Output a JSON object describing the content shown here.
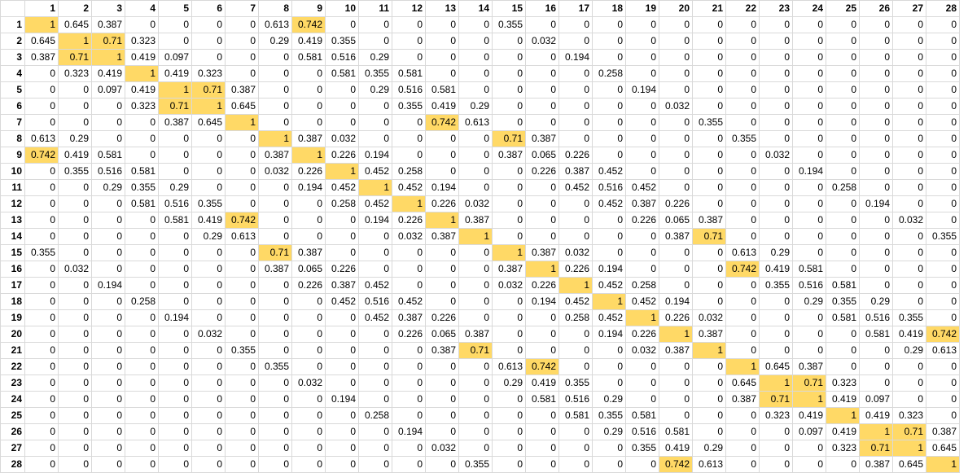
{
  "highlight_color": "#ffd966",
  "col_headers": [
    "1",
    "2",
    "3",
    "4",
    "5",
    "6",
    "7",
    "8",
    "9",
    "10",
    "11",
    "12",
    "13",
    "14",
    "15",
    "16",
    "17",
    "18",
    "19",
    "20",
    "21",
    "22",
    "23",
    "24",
    "25",
    "26",
    "27",
    "28"
  ],
  "row_headers": [
    "1",
    "2",
    "3",
    "4",
    "5",
    "6",
    "7",
    "8",
    "9",
    "10",
    "11",
    "12",
    "13",
    "14",
    "15",
    "16",
    "17",
    "18",
    "19",
    "20",
    "21",
    "22",
    "23",
    "24",
    "25",
    "26",
    "27",
    "28"
  ],
  "rows": [
    [
      "1",
      "0.645",
      "0.387",
      "0",
      "0",
      "0",
      "0",
      "0.613",
      "0.742",
      "0",
      "0",
      "0",
      "0",
      "0",
      "0.355",
      "0",
      "0",
      "0",
      "0",
      "0",
      "0",
      "0",
      "0",
      "0",
      "0",
      "0",
      "0",
      "0"
    ],
    [
      "0.645",
      "1",
      "0.71",
      "0.323",
      "0",
      "0",
      "0",
      "0.29",
      "0.419",
      "0.355",
      "0",
      "0",
      "0",
      "0",
      "0",
      "0.032",
      "0",
      "0",
      "0",
      "0",
      "0",
      "0",
      "0",
      "0",
      "0",
      "0",
      "0",
      "0"
    ],
    [
      "0.387",
      "0.71",
      "1",
      "0.419",
      "0.097",
      "0",
      "0",
      "0",
      "0.581",
      "0.516",
      "0.29",
      "0",
      "0",
      "0",
      "0",
      "0",
      "0.194",
      "0",
      "0",
      "0",
      "0",
      "0",
      "0",
      "0",
      "0",
      "0",
      "0",
      "0"
    ],
    [
      "0",
      "0.323",
      "0.419",
      "1",
      "0.419",
      "0.323",
      "0",
      "0",
      "0",
      "0.581",
      "0.355",
      "0.581",
      "0",
      "0",
      "0",
      "0",
      "0",
      "0.258",
      "0",
      "0",
      "0",
      "0",
      "0",
      "0",
      "0",
      "0",
      "0",
      "0"
    ],
    [
      "0",
      "0",
      "0.097",
      "0.419",
      "1",
      "0.71",
      "0.387",
      "0",
      "0",
      "0",
      "0.29",
      "0.516",
      "0.581",
      "0",
      "0",
      "0",
      "0",
      "0",
      "0.194",
      "0",
      "0",
      "0",
      "0",
      "0",
      "0",
      "0",
      "0",
      "0"
    ],
    [
      "0",
      "0",
      "0",
      "0.323",
      "0.71",
      "1",
      "0.645",
      "0",
      "0",
      "0",
      "0",
      "0.355",
      "0.419",
      "0.29",
      "0",
      "0",
      "0",
      "0",
      "0",
      "0.032",
      "0",
      "0",
      "0",
      "0",
      "0",
      "0",
      "0",
      "0"
    ],
    [
      "0",
      "0",
      "0",
      "0",
      "0.387",
      "0.645",
      "1",
      "0",
      "0",
      "0",
      "0",
      "0",
      "0.742",
      "0.613",
      "0",
      "0",
      "0",
      "0",
      "0",
      "0",
      "0.355",
      "0",
      "0",
      "0",
      "0",
      "0",
      "0",
      "0"
    ],
    [
      "0.613",
      "0.29",
      "0",
      "0",
      "0",
      "0",
      "0",
      "1",
      "0.387",
      "0.032",
      "0",
      "0",
      "0",
      "0",
      "0.71",
      "0.387",
      "0",
      "0",
      "0",
      "0",
      "0",
      "0.355",
      "0",
      "0",
      "0",
      "0",
      "0",
      "0"
    ],
    [
      "0.742",
      "0.419",
      "0.581",
      "0",
      "0",
      "0",
      "0",
      "0.387",
      "1",
      "0.226",
      "0.194",
      "0",
      "0",
      "0",
      "0.387",
      "0.065",
      "0.226",
      "0",
      "0",
      "0",
      "0",
      "0",
      "0.032",
      "0",
      "0",
      "0",
      "0",
      "0"
    ],
    [
      "0",
      "0.355",
      "0.516",
      "0.581",
      "0",
      "0",
      "0",
      "0.032",
      "0.226",
      "1",
      "0.452",
      "0.258",
      "0",
      "0",
      "0",
      "0.226",
      "0.387",
      "0.452",
      "0",
      "0",
      "0",
      "0",
      "0",
      "0.194",
      "0",
      "0",
      "0",
      "0"
    ],
    [
      "0",
      "0",
      "0.29",
      "0.355",
      "0.29",
      "0",
      "0",
      "0",
      "0.194",
      "0.452",
      "1",
      "0.452",
      "0.194",
      "0",
      "0",
      "0",
      "0.452",
      "0.516",
      "0.452",
      "0",
      "0",
      "0",
      "0",
      "0",
      "0.258",
      "0",
      "0",
      "0"
    ],
    [
      "0",
      "0",
      "0",
      "0.581",
      "0.516",
      "0.355",
      "0",
      "0",
      "0",
      "0.258",
      "0.452",
      "1",
      "0.226",
      "0.032",
      "0",
      "0",
      "0",
      "0.452",
      "0.387",
      "0.226",
      "0",
      "0",
      "0",
      "0",
      "0",
      "0.194",
      "0",
      "0"
    ],
    [
      "0",
      "0",
      "0",
      "0",
      "0.581",
      "0.419",
      "0.742",
      "0",
      "0",
      "0",
      "0.194",
      "0.226",
      "1",
      "0.387",
      "0",
      "0",
      "0",
      "0",
      "0.226",
      "0.065",
      "0.387",
      "0",
      "0",
      "0",
      "0",
      "0",
      "0.032",
      "0"
    ],
    [
      "0",
      "0",
      "0",
      "0",
      "0",
      "0.29",
      "0.613",
      "0",
      "0",
      "0",
      "0",
      "0.032",
      "0.387",
      "1",
      "0",
      "0",
      "0",
      "0",
      "0",
      "0.387",
      "0.71",
      "0",
      "0",
      "0",
      "0",
      "0",
      "0",
      "0.355"
    ],
    [
      "0.355",
      "0",
      "0",
      "0",
      "0",
      "0",
      "0",
      "0.71",
      "0.387",
      "0",
      "0",
      "0",
      "0",
      "0",
      "1",
      "0.387",
      "0.032",
      "0",
      "0",
      "0",
      "0",
      "0.613",
      "0.29",
      "0",
      "0",
      "0",
      "0",
      "0"
    ],
    [
      "0",
      "0.032",
      "0",
      "0",
      "0",
      "0",
      "0",
      "0.387",
      "0.065",
      "0.226",
      "0",
      "0",
      "0",
      "0",
      "0.387",
      "1",
      "0.226",
      "0.194",
      "0",
      "0",
      "0",
      "0.742",
      "0.419",
      "0.581",
      "0",
      "0",
      "0",
      "0"
    ],
    [
      "0",
      "0",
      "0.194",
      "0",
      "0",
      "0",
      "0",
      "0",
      "0.226",
      "0.387",
      "0.452",
      "0",
      "0",
      "0",
      "0.032",
      "0.226",
      "1",
      "0.452",
      "0.258",
      "0",
      "0",
      "0",
      "0.355",
      "0.516",
      "0.581",
      "0",
      "0",
      "0"
    ],
    [
      "0",
      "0",
      "0",
      "0.258",
      "0",
      "0",
      "0",
      "0",
      "0",
      "0.452",
      "0.516",
      "0.452",
      "0",
      "0",
      "0",
      "0.194",
      "0.452",
      "1",
      "0.452",
      "0.194",
      "0",
      "0",
      "0",
      "0.29",
      "0.355",
      "0.29",
      "0",
      "0"
    ],
    [
      "0",
      "0",
      "0",
      "0",
      "0.194",
      "0",
      "0",
      "0",
      "0",
      "0",
      "0.452",
      "0.387",
      "0.226",
      "0",
      "0",
      "0",
      "0.258",
      "0.452",
      "1",
      "0.226",
      "0.032",
      "0",
      "0",
      "0",
      "0.581",
      "0.516",
      "0.355",
      "0"
    ],
    [
      "0",
      "0",
      "0",
      "0",
      "0",
      "0.032",
      "0",
      "0",
      "0",
      "0",
      "0",
      "0.226",
      "0.065",
      "0.387",
      "0",
      "0",
      "0",
      "0.194",
      "0.226",
      "1",
      "0.387",
      "0",
      "0",
      "0",
      "0",
      "0.581",
      "0.419",
      "0.742"
    ],
    [
      "0",
      "0",
      "0",
      "0",
      "0",
      "0",
      "0.355",
      "0",
      "0",
      "0",
      "0",
      "0",
      "0.387",
      "0.71",
      "0",
      "0",
      "0",
      "0",
      "0.032",
      "0.387",
      "1",
      "0",
      "0",
      "0",
      "0",
      "0",
      "0.29",
      "0.613"
    ],
    [
      "0",
      "0",
      "0",
      "0",
      "0",
      "0",
      "0",
      "0.355",
      "0",
      "0",
      "0",
      "0",
      "0",
      "0",
      "0.613",
      "0.742",
      "0",
      "0",
      "0",
      "0",
      "0",
      "1",
      "0.645",
      "0.387",
      "0",
      "0",
      "0",
      "0"
    ],
    [
      "0",
      "0",
      "0",
      "0",
      "0",
      "0",
      "0",
      "0",
      "0.032",
      "0",
      "0",
      "0",
      "0",
      "0",
      "0.29",
      "0.419",
      "0.355",
      "0",
      "0",
      "0",
      "0",
      "0.645",
      "1",
      "0.71",
      "0.323",
      "0",
      "0",
      "0"
    ],
    [
      "0",
      "0",
      "0",
      "0",
      "0",
      "0",
      "0",
      "0",
      "0",
      "0.194",
      "0",
      "0",
      "0",
      "0",
      "0",
      "0.581",
      "0.516",
      "0.29",
      "0",
      "0",
      "0",
      "0.387",
      "0.71",
      "1",
      "0.419",
      "0.097",
      "0",
      "0"
    ],
    [
      "0",
      "0",
      "0",
      "0",
      "0",
      "0",
      "0",
      "0",
      "0",
      "0",
      "0.258",
      "0",
      "0",
      "0",
      "0",
      "0",
      "0.581",
      "0.355",
      "0.581",
      "0",
      "0",
      "0",
      "0.323",
      "0.419",
      "1",
      "0.419",
      "0.323",
      "0"
    ],
    [
      "0",
      "0",
      "0",
      "0",
      "0",
      "0",
      "0",
      "0",
      "0",
      "0",
      "0",
      "0.194",
      "0",
      "0",
      "0",
      "0",
      "0",
      "0.29",
      "0.516",
      "0.581",
      "0",
      "0",
      "0",
      "0.097",
      "0.419",
      "1",
      "0.71",
      "0.387"
    ],
    [
      "0",
      "0",
      "0",
      "0",
      "0",
      "0",
      "0",
      "0",
      "0",
      "0",
      "0",
      "0",
      "0.032",
      "0",
      "0",
      "0",
      "0",
      "0",
      "0.355",
      "0.419",
      "0.29",
      "0",
      "0",
      "0",
      "0.323",
      "0.71",
      "1",
      "0.645"
    ],
    [
      "0",
      "0",
      "0",
      "0",
      "0",
      "0",
      "0",
      "0",
      "0",
      "0",
      "0",
      "0",
      "0",
      "0.355",
      "0",
      "0",
      "0",
      "0",
      "0",
      "0.742",
      "0.613",
      "0",
      "0",
      "0",
      "0",
      "0.387",
      "0.645",
      "1"
    ]
  ],
  "highlight_cells": [
    [
      0,
      0
    ],
    [
      0,
      8
    ],
    [
      1,
      1
    ],
    [
      1,
      2
    ],
    [
      2,
      1
    ],
    [
      2,
      2
    ],
    [
      3,
      3
    ],
    [
      4,
      4
    ],
    [
      4,
      5
    ],
    [
      5,
      4
    ],
    [
      5,
      5
    ],
    [
      6,
      6
    ],
    [
      6,
      12
    ],
    [
      7,
      7
    ],
    [
      7,
      14
    ],
    [
      8,
      0
    ],
    [
      8,
      8
    ],
    [
      9,
      9
    ],
    [
      10,
      10
    ],
    [
      11,
      11
    ],
    [
      12,
      6
    ],
    [
      12,
      12
    ],
    [
      13,
      13
    ],
    [
      13,
      20
    ],
    [
      14,
      7
    ],
    [
      14,
      14
    ],
    [
      15,
      15
    ],
    [
      15,
      21
    ],
    [
      16,
      16
    ],
    [
      17,
      17
    ],
    [
      18,
      18
    ],
    [
      19,
      19
    ],
    [
      19,
      27
    ],
    [
      20,
      13
    ],
    [
      20,
      20
    ],
    [
      21,
      15
    ],
    [
      21,
      21
    ],
    [
      22,
      22
    ],
    [
      22,
      23
    ],
    [
      23,
      22
    ],
    [
      23,
      23
    ],
    [
      24,
      24
    ],
    [
      25,
      25
    ],
    [
      25,
      26
    ],
    [
      26,
      25
    ],
    [
      26,
      26
    ],
    [
      27,
      19
    ],
    [
      27,
      27
    ]
  ]
}
